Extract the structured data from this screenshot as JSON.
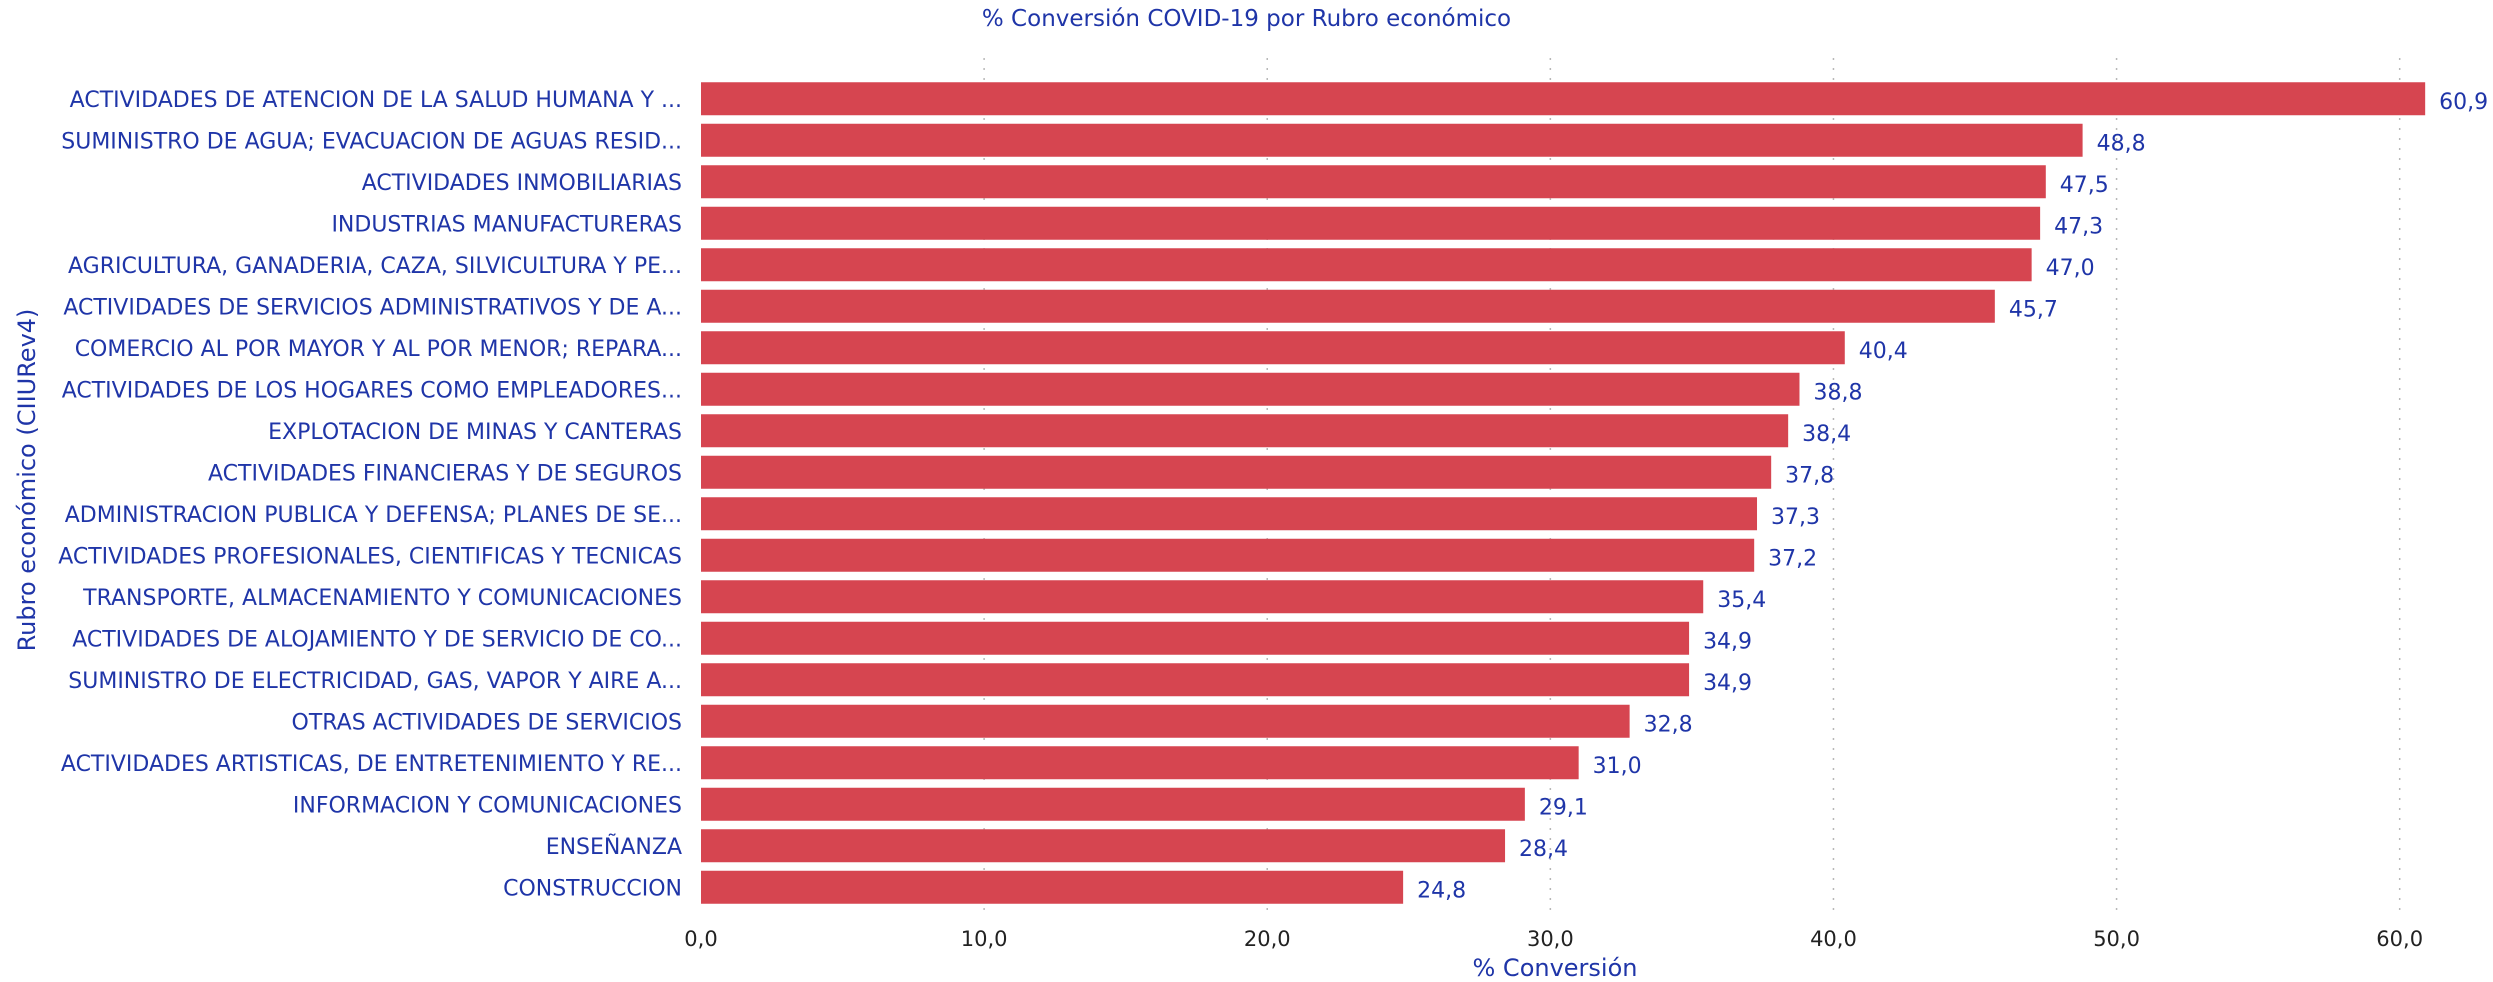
{
  "chart_data": {
    "type": "bar",
    "orientation": "horizontal",
    "title": "% Conversión COVID-19 por Rubro económico",
    "xlabel": "% Conversión",
    "ylabel": "Rubro económico (CIIURev4)",
    "xlim": [
      0,
      61
    ],
    "x_ticks": [
      "0,0",
      "10,0",
      "20,0",
      "30,0",
      "40,0",
      "50,0",
      "60,0"
    ],
    "x_tick_values": [
      0,
      10,
      20,
      30,
      40,
      50,
      60
    ],
    "grid": "vertical-dotted",
    "bar_color": "#d64550",
    "text_color": "#1f35a8",
    "categories": [
      "ACTIVIDADES DE ATENCION DE LA SALUD HUMANA Y ...",
      "SUMINISTRO DE AGUA; EVACUACION DE AGUAS RESID...",
      "ACTIVIDADES INMOBILIARIAS",
      "INDUSTRIAS MANUFACTURERAS",
      "AGRICULTURA, GANADERIA, CAZA, SILVICULTURA Y PE...",
      "ACTIVIDADES DE SERVICIOS ADMINISTRATIVOS Y DE A...",
      "COMERCIO AL POR MAYOR Y AL POR MENOR; REPARA...",
      "ACTIVIDADES DE LOS HOGARES COMO EMPLEADORES...",
      "EXPLOTACION DE MINAS Y CANTERAS",
      "ACTIVIDADES FINANCIERAS Y DE SEGUROS",
      "ADMINISTRACION PUBLICA Y DEFENSA; PLANES DE SE...",
      "ACTIVIDADES PROFESIONALES, CIENTIFICAS Y TECNICAS",
      "TRANSPORTE, ALMACENAMIENTO Y COMUNICACIONES",
      "ACTIVIDADES DE ALOJAMIENTO Y DE SERVICIO DE CO...",
      "SUMINISTRO DE ELECTRICIDAD, GAS, VAPOR Y AIRE A...",
      "OTRAS ACTIVIDADES DE SERVICIOS",
      "ACTIVIDADES ARTISTICAS, DE ENTRETENIMIENTO Y RE...",
      "INFORMACION Y COMUNICACIONES",
      "ENSEÑANZA",
      "CONSTRUCCION"
    ],
    "values": [
      60.9,
      48.8,
      47.5,
      47.3,
      47.0,
      45.7,
      40.4,
      38.8,
      38.4,
      37.8,
      37.3,
      37.2,
      35.4,
      34.9,
      34.9,
      32.8,
      31.0,
      29.1,
      28.4,
      24.8
    ],
    "value_labels": [
      "60,9",
      "48,8",
      "47,5",
      "47,3",
      "47,0",
      "45,7",
      "40,4",
      "38,8",
      "38,4",
      "37,8",
      "37,3",
      "37,2",
      "35,4",
      "34,9",
      "34,9",
      "32,8",
      "31,0",
      "29,1",
      "28,4",
      "24,8"
    ]
  }
}
